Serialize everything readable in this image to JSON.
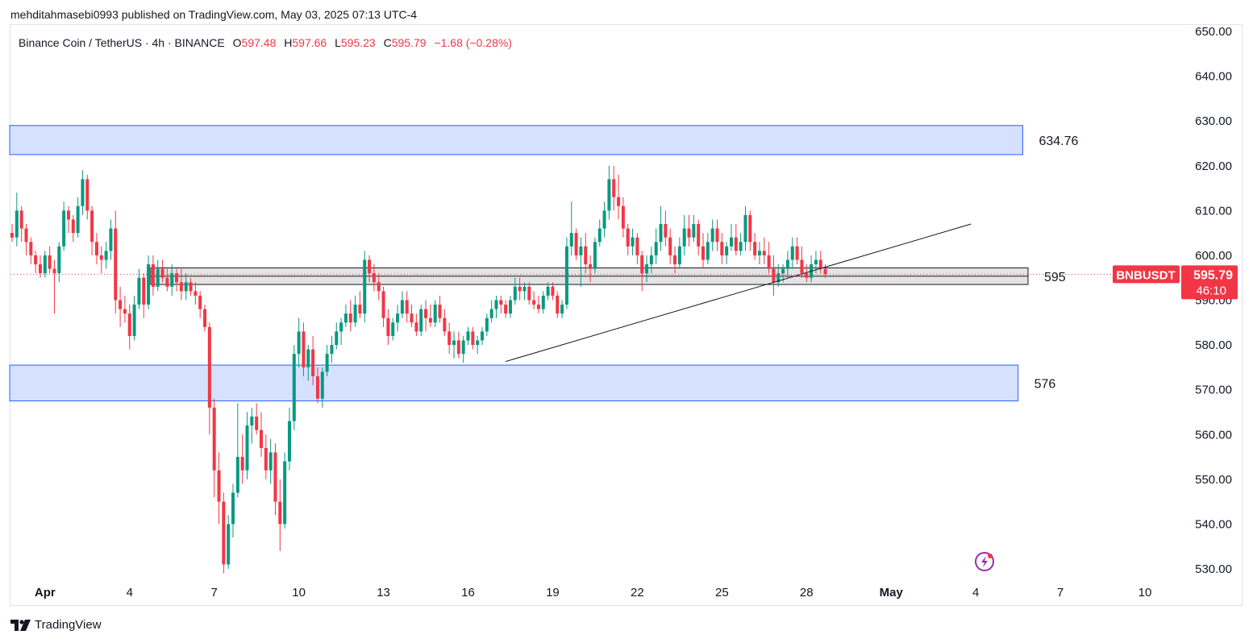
{
  "header": {
    "publisher": "mehditahmasebi0993 published on TradingView.com, May 03, 2025 07:13 UTC-4"
  },
  "legend": {
    "symbol": "Binance Coin / TetherUS · 4h · BINANCE",
    "o_label": "O",
    "o": "597.48",
    "h_label": "H",
    "h": "597.66",
    "l_label": "L",
    "l": "595.23",
    "c_label": "C",
    "c": "595.79",
    "change": "−1.68 (−0.28%)"
  },
  "footer": {
    "brand": "TradingView"
  },
  "badge": {
    "symbol": "BNBUSDT",
    "price": "595.79",
    "countdown": "46:10"
  },
  "colors": {
    "up": "#089981",
    "down": "#f23645",
    "zone": "#d6e0ff",
    "zone_border": "#2962ff",
    "gray_zone": "#d9d9d9"
  },
  "icons": {
    "bottom_right": "lightning-icon"
  },
  "chart_data": {
    "type": "candlestick",
    "timeframe": "4h",
    "ylim": [
      528,
      652
    ],
    "y_ticks": [
      "650.00",
      "640.00",
      "630.00",
      "620.00",
      "610.00",
      "600.00",
      "590.00",
      "580.00",
      "570.00",
      "560.00",
      "550.00",
      "540.00",
      "530.00"
    ],
    "x_ticks": [
      {
        "label": "Apr",
        "index": 7
      },
      {
        "label": "4",
        "index": 25
      },
      {
        "label": "7",
        "index": 43
      },
      {
        "label": "10",
        "index": 61
      },
      {
        "label": "13",
        "index": 79
      },
      {
        "label": "16",
        "index": 97
      },
      {
        "label": "19",
        "index": 115
      },
      {
        "label": "22",
        "index": 133
      },
      {
        "label": "25",
        "index": 151
      },
      {
        "label": "28",
        "index": 169
      },
      {
        "label": "May",
        "index": 187
      },
      {
        "label": "4",
        "index": 205
      },
      {
        "label": "7",
        "index": 223
      },
      {
        "label": "10",
        "index": 241
      }
    ],
    "zones": [
      {
        "label": "634.76",
        "from": 622.5,
        "to": 629,
        "start": 0,
        "end": 215,
        "style": "blue"
      },
      {
        "label": "595",
        "from": 593.5,
        "to": 597.2,
        "start": 30,
        "end": 217,
        "style": "gray"
      },
      {
        "label": "576",
        "from": 567.5,
        "to": 575.5,
        "start": 0,
        "end": 214,
        "style": "blue"
      }
    ],
    "trendline": {
      "from": {
        "index": 105,
        "price": 576.3
      },
      "to": {
        "index": 204,
        "price": 607
      }
    },
    "current_price": 595.79,
    "ohlc": [
      [
        605,
        607,
        603,
        604
      ],
      [
        604,
        614,
        602,
        610
      ],
      [
        610,
        611,
        603,
        606
      ],
      [
        606,
        607,
        600,
        603
      ],
      [
        603,
        604,
        598,
        600
      ],
      [
        600,
        601,
        596,
        598
      ],
      [
        598,
        600,
        595,
        596
      ],
      [
        596,
        601,
        595,
        600
      ],
      [
        600,
        602,
        596,
        597
      ],
      [
        597,
        599,
        587,
        596
      ],
      [
        596,
        603,
        594,
        602
      ],
      [
        602,
        612,
        601,
        610
      ],
      [
        610,
        611,
        605,
        608
      ],
      [
        608,
        609,
        603,
        605
      ],
      [
        605,
        613,
        604,
        611
      ],
      [
        611,
        619,
        609,
        617
      ],
      [
        617,
        618,
        608,
        610
      ],
      [
        610,
        611,
        600,
        603
      ],
      [
        603,
        605,
        598,
        600
      ],
      [
        600,
        602,
        596,
        599
      ],
      [
        599,
        603,
        597,
        601
      ],
      [
        601,
        608,
        599,
        606
      ],
      [
        606,
        610,
        587,
        590
      ],
      [
        590,
        593,
        584,
        588
      ],
      [
        588,
        591,
        585,
        587
      ],
      [
        587,
        589,
        579,
        582
      ],
      [
        582,
        591,
        581,
        589
      ],
      [
        589,
        597,
        588,
        595
      ],
      [
        595,
        596,
        586,
        589
      ],
      [
        589,
        600,
        588,
        598
      ],
      [
        598,
        600,
        591,
        593
      ],
      [
        593,
        599,
        592,
        597
      ],
      [
        597,
        599,
        594,
        595
      ],
      [
        595,
        597,
        592,
        593
      ],
      [
        593,
        598,
        591,
        596
      ],
      [
        596,
        597,
        592,
        594
      ],
      [
        594,
        597,
        590,
        592
      ],
      [
        592,
        596,
        590,
        594
      ],
      [
        594,
        595,
        591,
        592
      ],
      [
        592,
        594,
        589,
        591
      ],
      [
        591,
        592,
        586,
        588
      ],
      [
        588,
        589,
        583,
        584
      ],
      [
        584,
        585,
        560,
        566
      ],
      [
        566,
        568,
        546,
        552
      ],
      [
        552,
        556,
        540,
        545
      ],
      [
        545,
        547,
        529,
        531
      ],
      [
        531,
        542,
        530,
        540
      ],
      [
        540,
        549,
        537,
        547
      ],
      [
        547,
        567,
        546,
        555
      ],
      [
        555,
        560,
        549,
        552
      ],
      [
        552,
        565,
        550,
        562
      ],
      [
        562,
        566,
        558,
        564
      ],
      [
        564,
        567,
        560,
        561
      ],
      [
        561,
        565,
        555,
        557
      ],
      [
        557,
        560,
        550,
        552
      ],
      [
        552,
        559,
        549,
        556
      ],
      [
        556,
        558,
        542,
        545
      ],
      [
        545,
        550,
        534,
        540
      ],
      [
        540,
        556,
        539,
        554
      ],
      [
        554,
        566,
        552,
        563
      ],
      [
        563,
        580,
        561,
        578
      ],
      [
        578,
        586,
        575,
        583
      ],
      [
        583,
        585,
        573,
        575
      ],
      [
        575,
        580,
        572,
        579
      ],
      [
        579,
        582,
        571,
        573
      ],
      [
        573,
        575,
        567,
        568
      ],
      [
        568,
        575,
        566,
        574
      ],
      [
        574,
        580,
        573,
        578
      ],
      [
        578,
        582,
        576,
        580
      ],
      [
        580,
        585,
        579,
        583
      ],
      [
        583,
        586,
        580,
        585
      ],
      [
        585,
        589,
        584,
        587
      ],
      [
        587,
        590,
        583,
        585
      ],
      [
        585,
        591,
        584,
        589
      ],
      [
        589,
        592,
        586,
        587
      ],
      [
        587,
        601,
        585,
        599
      ],
      [
        599,
        600,
        594,
        596
      ],
      [
        596,
        598,
        592,
        594
      ],
      [
        594,
        596,
        590,
        592
      ],
      [
        592,
        593,
        584,
        586
      ],
      [
        586,
        588,
        580,
        582
      ],
      [
        582,
        586,
        581,
        585
      ],
      [
        585,
        589,
        583,
        587
      ],
      [
        587,
        592,
        586,
        590
      ],
      [
        590,
        592,
        585,
        587
      ],
      [
        587,
        589,
        584,
        585
      ],
      [
        585,
        587,
        582,
        583
      ],
      [
        583,
        589,
        582,
        588
      ],
      [
        588,
        590,
        583,
        586
      ],
      [
        586,
        589,
        584,
        585
      ],
      [
        585,
        590,
        584,
        589
      ],
      [
        589,
        591,
        585,
        586
      ],
      [
        586,
        588,
        582,
        583
      ],
      [
        583,
        585,
        578,
        580
      ],
      [
        580,
        583,
        577,
        581
      ],
      [
        581,
        583,
        577,
        578
      ],
      [
        578,
        582,
        576,
        581
      ],
      [
        581,
        584,
        580,
        583
      ],
      [
        583,
        584,
        579,
        580
      ],
      [
        580,
        582,
        578,
        581
      ],
      [
        581,
        584,
        580,
        583
      ],
      [
        583,
        587,
        582,
        586
      ],
      [
        586,
        590,
        585,
        588
      ],
      [
        588,
        591,
        586,
        590
      ],
      [
        590,
        591,
        587,
        589
      ],
      [
        589,
        590,
        586,
        587
      ],
      [
        587,
        591,
        586,
        590
      ],
      [
        590,
        595,
        589,
        593
      ],
      [
        593,
        595,
        590,
        592
      ],
      [
        592,
        594,
        590,
        593
      ],
      [
        593,
        594,
        589,
        590
      ],
      [
        590,
        592,
        588,
        589
      ],
      [
        589,
        591,
        587,
        588
      ],
      [
        588,
        592,
        587,
        591
      ],
      [
        591,
        594,
        590,
        593
      ],
      [
        593,
        594,
        590,
        591
      ],
      [
        591,
        592,
        586,
        587
      ],
      [
        587,
        590,
        586,
        589
      ],
      [
        589,
        604,
        588,
        602
      ],
      [
        602,
        612,
        600,
        605
      ],
      [
        605,
        606,
        599,
        600
      ],
      [
        600,
        604,
        593,
        602
      ],
      [
        602,
        605,
        596,
        598
      ],
      [
        598,
        600,
        594,
        597
      ],
      [
        597,
        604,
        596,
        603
      ],
      [
        603,
        608,
        602,
        606
      ],
      [
        606,
        612,
        604,
        610
      ],
      [
        610,
        620,
        608,
        617
      ],
      [
        617,
        620,
        610,
        613
      ],
      [
        613,
        618,
        608,
        611
      ],
      [
        611,
        613,
        604,
        606
      ],
      [
        606,
        607,
        600,
        602
      ],
      [
        602,
        606,
        600,
        604
      ],
      [
        604,
        605,
        598,
        600
      ],
      [
        600,
        601,
        592,
        596
      ],
      [
        596,
        600,
        594,
        598
      ],
      [
        598,
        602,
        596,
        600
      ],
      [
        600,
        606,
        598,
        603
      ],
      [
        603,
        611,
        601,
        607
      ],
      [
        607,
        610,
        602,
        604
      ],
      [
        604,
        606,
        598,
        600
      ],
      [
        600,
        602,
        596,
        598
      ],
      [
        598,
        604,
        597,
        602
      ],
      [
        602,
        609,
        600,
        606
      ],
      [
        606,
        609,
        602,
        604
      ],
      [
        604,
        609,
        603,
        607
      ],
      [
        607,
        608,
        600,
        602
      ],
      [
        602,
        605,
        597,
        599
      ],
      [
        599,
        605,
        598,
        603
      ],
      [
        603,
        608,
        601,
        606
      ],
      [
        606,
        608,
        601,
        603
      ],
      [
        603,
        605,
        598,
        600
      ],
      [
        600,
        603,
        598,
        602
      ],
      [
        602,
        607,
        601,
        604
      ],
      [
        604,
        607,
        600,
        601
      ],
      [
        601,
        605,
        600,
        603
      ],
      [
        603,
        611,
        601,
        609
      ],
      [
        609,
        610,
        601,
        603
      ],
      [
        603,
        605,
        599,
        600
      ],
      [
        600,
        603,
        598,
        601
      ],
      [
        601,
        604,
        598,
        600
      ],
      [
        600,
        603,
        596,
        597
      ],
      [
        597,
        600,
        591,
        594
      ],
      [
        594,
        598,
        593,
        596
      ],
      [
        596,
        598,
        594,
        597
      ],
      [
        597,
        601,
        595,
        599
      ],
      [
        599,
        604,
        597,
        602
      ],
      [
        602,
        604,
        598,
        599
      ],
      [
        599,
        602,
        595,
        596
      ],
      [
        596,
        598,
        594,
        595
      ],
      [
        595,
        600,
        594,
        598
      ],
      [
        598,
        601,
        596,
        599
      ],
      [
        599,
        601,
        596,
        597
      ],
      [
        597,
        598,
        595,
        595.79
      ]
    ]
  }
}
